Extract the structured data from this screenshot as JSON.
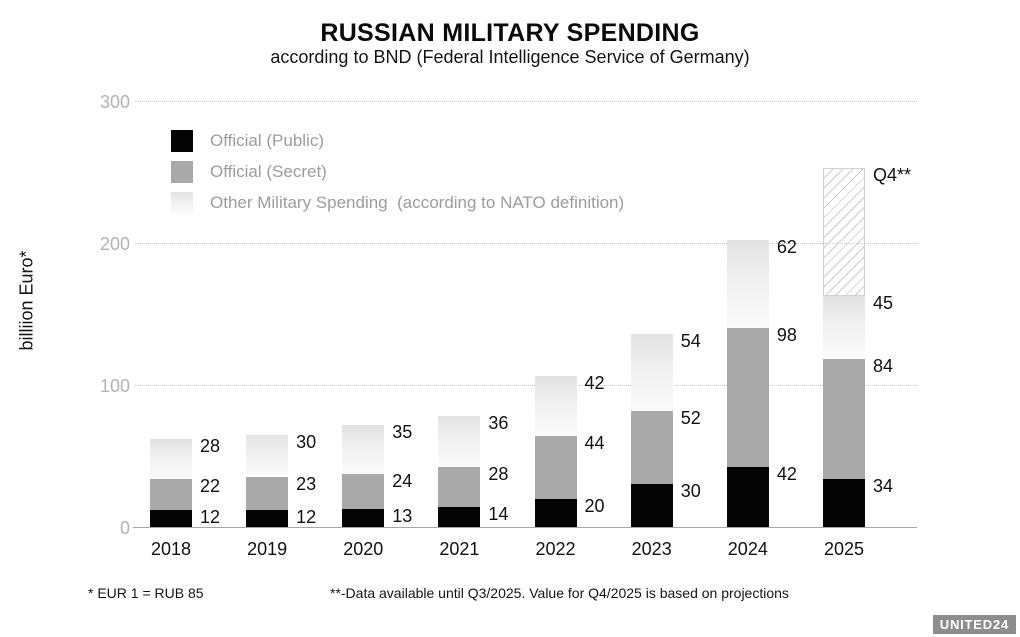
{
  "header": {
    "title": "RUSSIAN MILITARY SPENDING",
    "subtitle": "according to BND (Federal Intelligence Service of Germany)"
  },
  "chart_data": {
    "type": "bar",
    "stacked": true,
    "title": "RUSSIAN MILITARY SPENDING",
    "subtitle": "according to BND (Federal Intelligence Service of Germany)",
    "ylabel": "billiion Euro*",
    "ylim": [
      0,
      300
    ],
    "yticks": [
      0,
      100,
      200,
      300
    ],
    "grid": "horizontal dotted",
    "legend_position": "top-left inside",
    "categories": [
      "2018",
      "2019",
      "2020",
      "2021",
      "2022",
      "2023",
      "2024",
      "2025"
    ],
    "series": [
      {
        "name": "Official (Public)",
        "color": "#050505",
        "values": [
          12,
          12,
          13,
          14,
          20,
          30,
          42,
          34
        ]
      },
      {
        "name": "Official (Secret)",
        "color": "#a9a9a9",
        "values": [
          22,
          23,
          24,
          28,
          44,
          52,
          98,
          84
        ]
      },
      {
        "name": "Other Military Spending  (according to NATO definition)",
        "color": "#ededed",
        "values": [
          28,
          30,
          35,
          36,
          42,
          54,
          62,
          45
        ]
      }
    ],
    "projection_segment": {
      "category": "2025",
      "label": "Q4**",
      "value_estimate": 90,
      "style": "diagonal-hatch",
      "labeled_value_shown": false
    }
  },
  "footnotes": {
    "rate": "* EUR 1 = RUB 85",
    "projection": "**-Data available until Q3/2025. Value for Q4/2025 is based on projections"
  },
  "logo": {
    "text": "UNITED24"
  }
}
